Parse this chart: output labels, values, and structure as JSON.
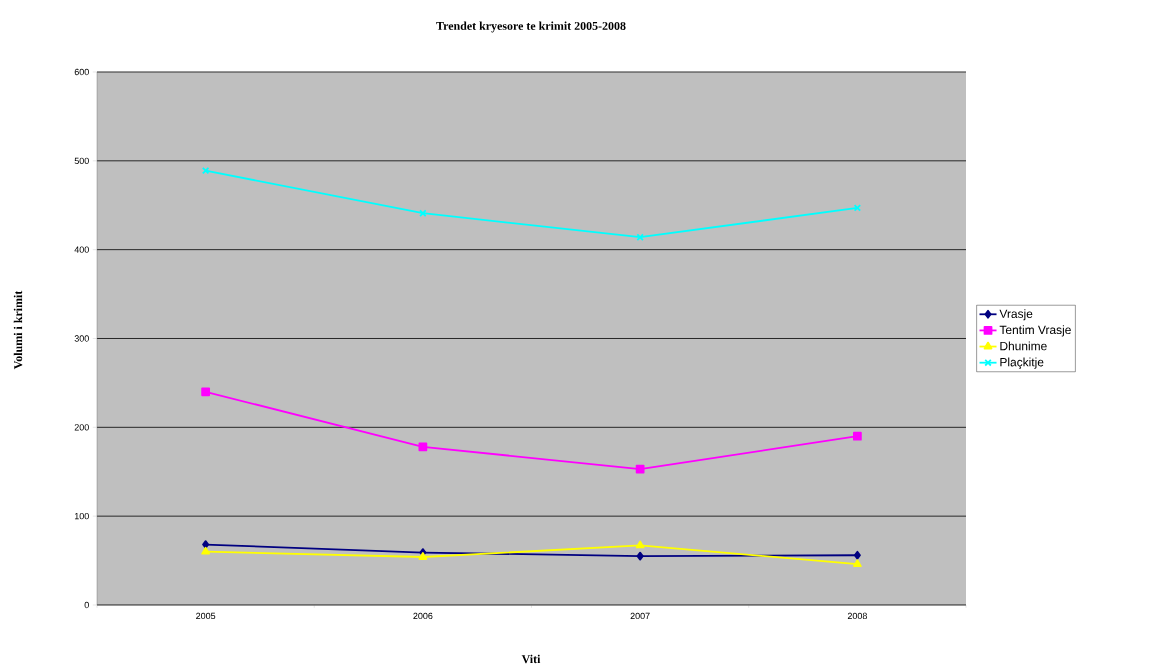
{
  "chart_data": {
    "type": "line",
    "title": "Trendet kryesore te krimit 2005-2008",
    "xlabel": "Viti",
    "ylabel": "Volumi i krimit",
    "categories": [
      "2005",
      "2006",
      "2007",
      "2008"
    ],
    "series": [
      {
        "name": "Vrasje",
        "color": "#000080",
        "marker": "diamond",
        "values": [
          68,
          59,
          55,
          56
        ]
      },
      {
        "name": "Tentim Vrasje",
        "color": "#ff00ff",
        "marker": "square",
        "values": [
          240,
          178,
          153,
          190
        ]
      },
      {
        "name": "Dhunime",
        "color": "#ffff00",
        "marker": "triangle",
        "values": [
          60,
          54,
          67,
          46
        ]
      },
      {
        "name": "Plaçkitje",
        "color": "#00ffff",
        "marker": "cross",
        "values": [
          489,
          441,
          414,
          447
        ]
      }
    ],
    "ylim": [
      0,
      600
    ],
    "yticks": [
      0,
      100,
      200,
      300,
      400,
      500,
      600
    ],
    "grid": "y",
    "legend": "right",
    "line_style": "solid"
  }
}
